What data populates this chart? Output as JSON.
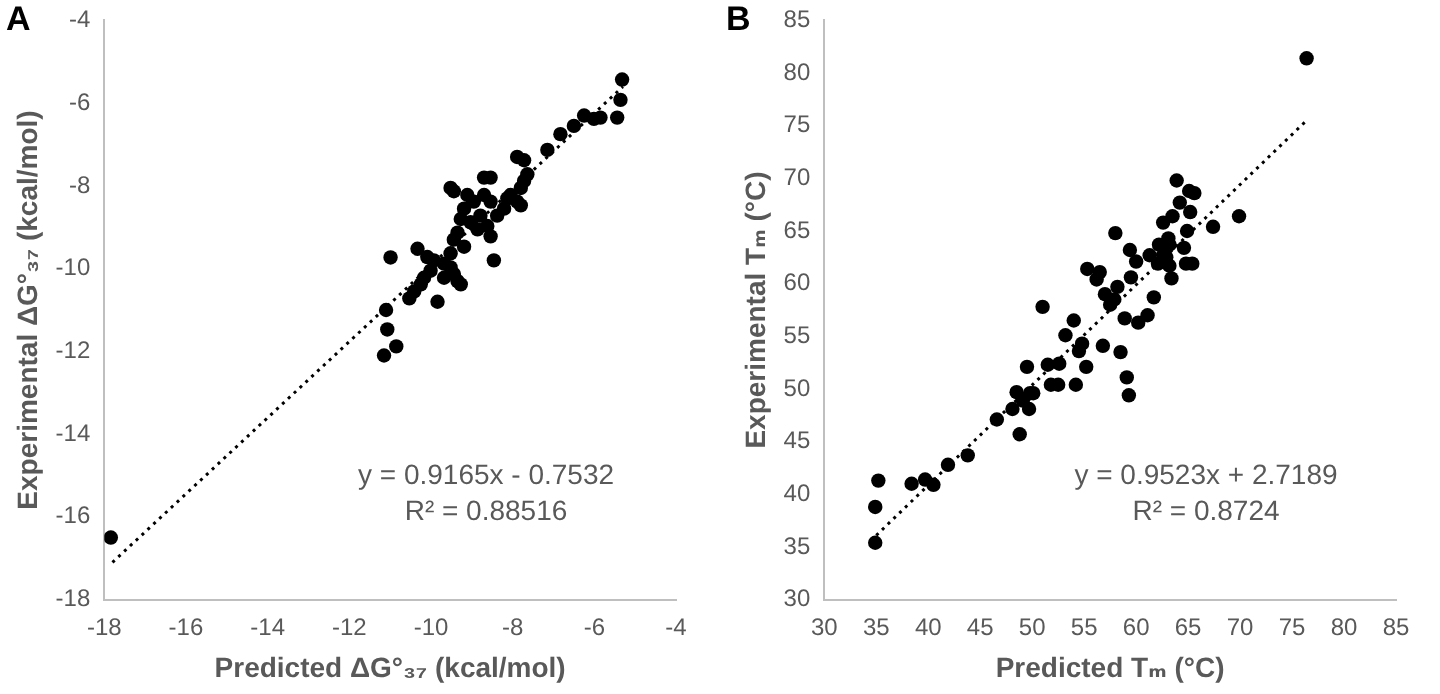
{
  "chart_data": [
    {
      "type": "scatter",
      "title": "A",
      "xlabel": "Predicted ΔG°₃₇ (kcal/mol)",
      "ylabel": "Experimental ΔG°₃₇ (kcal/mol)",
      "xlim": [
        -18,
        -4
      ],
      "ylim": [
        -18,
        -4
      ],
      "xticks": [
        -18,
        -16,
        -14,
        -12,
        -10,
        -8,
        -6,
        -4
      ],
      "yticks": [
        -18,
        -16,
        -14,
        -12,
        -10,
        -8,
        -6,
        -4
      ],
      "grid": false,
      "legend": false,
      "marker": "circle",
      "annotations": [
        "y = 0.9165x - 0.7532",
        "R² = 0.88516"
      ],
      "series": [
        {
          "color": "#000000",
          "x": [
            -17.84,
            -11.15,
            -11.07,
            -11.1,
            -10.85,
            -10.99,
            -10.33,
            -10.53,
            -10.41,
            -10.25,
            -10.17,
            -10.01,
            -10.09,
            -9.93,
            -9.84,
            -9.68,
            -9.52,
            -9.44,
            -9.35,
            -9.27,
            -9.52,
            -9.44,
            -9.35,
            -9.27,
            -9.19,
            -9.44,
            -9.52,
            -8.95,
            -8.79,
            -8.7,
            -8.54,
            -8.62,
            -8.54,
            -8.46,
            -8.38,
            -8.21,
            -8.13,
            -8.05,
            -7.89,
            -7.8,
            -7.72,
            -7.64,
            -7.72,
            -7.89,
            -7.8,
            -8.54,
            -8.7,
            -7.15,
            -6.83,
            -6.5,
            -6.25,
            -6.01,
            -5.85,
            -5.44,
            -5.36,
            -5.32,
            -8.86,
            -9.03,
            -9.19,
            -9.68,
            -9.11
          ],
          "values": [
            -16.5,
            -12.1,
            -11.47,
            -11.0,
            -11.88,
            -9.73,
            -9.52,
            -10.72,
            -10.55,
            -10.38,
            -10.22,
            -10.05,
            -9.72,
            -9.8,
            -10.8,
            -9.88,
            -9.97,
            -10.13,
            -10.3,
            -10.38,
            -9.63,
            -9.3,
            -9.13,
            -8.8,
            -8.55,
            -8.13,
            -8.05,
            -8.38,
            -8.72,
            -8.22,
            -8.38,
            -8.97,
            -9.22,
            -9.8,
            -8.72,
            -8.55,
            -8.3,
            -8.22,
            -8.38,
            -8.05,
            -7.88,
            -7.72,
            -7.38,
            -7.3,
            -8.47,
            -7.8,
            -7.8,
            -7.13,
            -6.75,
            -6.55,
            -6.3,
            -6.38,
            -6.35,
            -6.35,
            -5.92,
            -5.43,
            -9.05,
            -8.88,
            -9.47,
            -10.22,
            -8.22
          ]
        },
        {
          "type": "line",
          "color": "#000000",
          "line_style": "dotted",
          "marker": "none",
          "x": [
            -17.8,
            -5.3
          ],
          "values": [
            -17.1,
            -5.6
          ]
        }
      ]
    },
    {
      "type": "scatter",
      "title": "B",
      "xlabel": "Predicted Tₘ (°C)",
      "ylabel": "Experimental Tₘ (°C)",
      "xlim": [
        30,
        85
      ],
      "ylim": [
        30,
        85
      ],
      "xticks": [
        30,
        35,
        40,
        45,
        50,
        55,
        60,
        65,
        70,
        75,
        80,
        85
      ],
      "yticks": [
        30,
        35,
        40,
        45,
        50,
        55,
        60,
        65,
        70,
        75,
        80,
        85
      ],
      "grid": false,
      "legend": false,
      "marker": "circle",
      "annotations": [
        "y = 0.9523x + 2.7189",
        "R² = 0.8724"
      ],
      "series": [
        {
          "color": "#000000",
          "x": [
            34.9,
            34.9,
            35.2,
            38.4,
            39.7,
            40.5,
            41.9,
            43.8,
            46.6,
            48.1,
            48.8,
            48.5,
            49.1,
            49.5,
            49.7,
            49.8,
            50.1,
            51.0,
            51.5,
            51.8,
            52.5,
            52.6,
            53.2,
            54.0,
            54.2,
            54.5,
            54.8,
            55.2,
            55.3,
            56.2,
            56.5,
            56.8,
            57.0,
            57.5,
            57.9,
            58.0,
            58.2,
            58.5,
            58.9,
            59.1,
            59.3,
            59.4,
            59.5,
            60.0,
            60.2,
            61.1,
            61.3,
            61.7,
            62.1,
            62.2,
            62.6,
            62.9,
            63.1,
            63.2,
            63.4,
            63.5,
            63.9,
            64.2,
            64.6,
            64.8,
            64.9,
            65.1,
            65.2,
            65.4,
            65.6,
            67.4,
            69.9,
            76.4,
            63.2,
            62.6
          ],
          "values": [
            35.4,
            38.8,
            41.3,
            41.0,
            41.4,
            40.9,
            42.8,
            43.7,
            47.1,
            48.1,
            45.7,
            49.7,
            48.9,
            52.1,
            48.1,
            49.6,
            49.6,
            57.8,
            52.3,
            50.4,
            50.4,
            52.4,
            55.1,
            56.5,
            50.4,
            53.6,
            54.3,
            52.1,
            61.4,
            60.4,
            61.1,
            54.1,
            59.0,
            58.0,
            58.5,
            64.8,
            59.7,
            53.5,
            56.7,
            51.1,
            49.4,
            63.2,
            60.6,
            62.1,
            56.3,
            57.0,
            62.7,
            58.7,
            61.9,
            63.7,
            65.8,
            62.5,
            64.3,
            61.7,
            60.5,
            66.4,
            69.8,
            67.7,
            63.4,
            61.9,
            65.0,
            68.8,
            66.8,
            61.9,
            68.6,
            65.4,
            66.4,
            81.4,
            63.7,
            62.7
          ]
        },
        {
          "type": "line",
          "color": "#000000",
          "line_style": "dotted",
          "marker": "none",
          "x": [
            35,
            76.4
          ],
          "values": [
            36.1,
            75.5
          ]
        }
      ]
    }
  ]
}
